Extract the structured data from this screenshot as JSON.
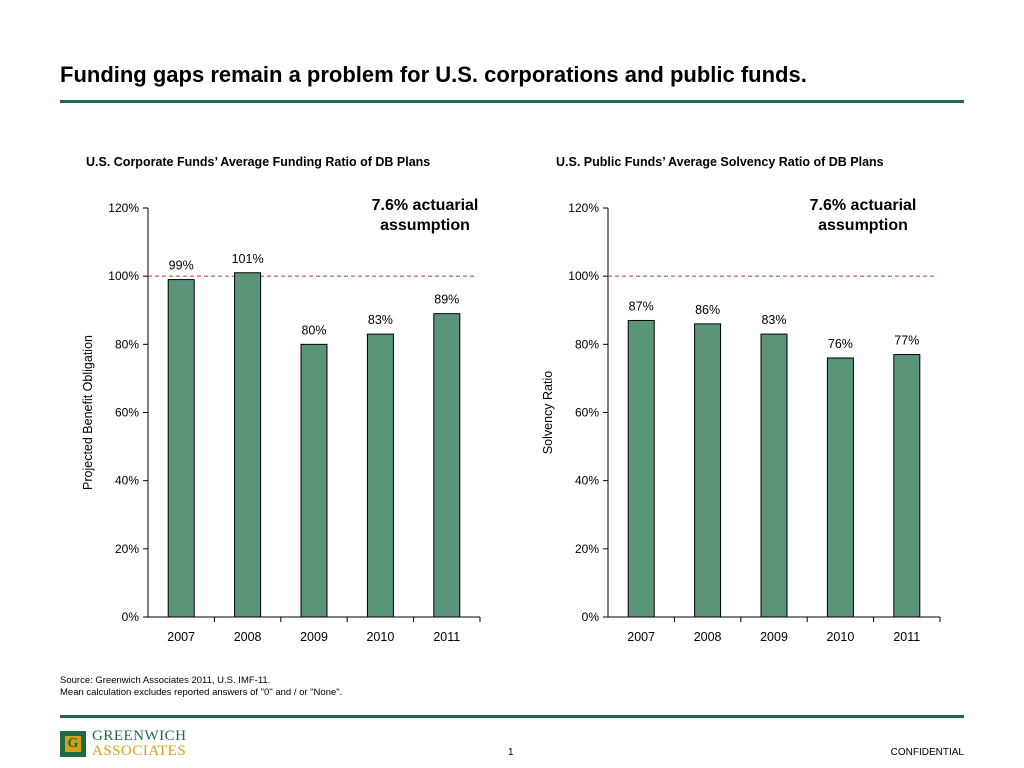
{
  "slide": {
    "title": "Funding gaps remain a problem for U.S. corporations and public funds.",
    "source_line1": "Source: Greenwich Associates 2011, U.S. IMF-11.",
    "source_line2": "Mean calculation excludes reported answers of \"0\" and / or \"None\".",
    "page_number": "1",
    "confidential": "CONFIDENTIAL",
    "logo_line1": "GREENWICH",
    "logo_line2": "ASSOCIATES",
    "logo_letter": "G"
  },
  "colors": {
    "bar_fill": "#5a9479",
    "rule": "#1f6b41",
    "reference_line": "#c0504d",
    "logo_gold": "#d4a017"
  },
  "chart_data": [
    {
      "type": "bar",
      "title": "U.S. Corporate Funds’ Average Funding Ratio of DB Plans",
      "categories": [
        "2007",
        "2008",
        "2009",
        "2010",
        "2011"
      ],
      "values": [
        99,
        101,
        80,
        83,
        89
      ],
      "data_labels": [
        "99%",
        "101%",
        "80%",
        "83%",
        "89%"
      ],
      "ylabel": "Projected Benefit Obligation",
      "xlabel": "",
      "ylim": [
        0,
        120
      ],
      "yticks": [
        0,
        20,
        40,
        60,
        80,
        100,
        120
      ],
      "ytick_labels": [
        "0%",
        "20%",
        "40%",
        "60%",
        "80%",
        "100%",
        "120%"
      ],
      "reference_line": {
        "value": 100,
        "style": "dashed"
      },
      "annotation": [
        "7.6% actuarial",
        "assumption"
      ],
      "grid": false
    },
    {
      "type": "bar",
      "title": "U.S. Public Funds’ Average Solvency Ratio of DB Plans",
      "categories": [
        "2007",
        "2008",
        "2009",
        "2010",
        "2011"
      ],
      "values": [
        87,
        86,
        83,
        76,
        77
      ],
      "data_labels": [
        "87%",
        "86%",
        "83%",
        "76%",
        "77%"
      ],
      "ylabel": "Solvency  Ratio",
      "xlabel": "",
      "ylim": [
        0,
        120
      ],
      "yticks": [
        0,
        20,
        40,
        60,
        80,
        100,
        120
      ],
      "ytick_labels": [
        "0%",
        "20%",
        "40%",
        "60%",
        "80%",
        "100%",
        "120%"
      ],
      "reference_line": {
        "value": 100,
        "style": "dashed"
      },
      "annotation": [
        "7.6% actuarial",
        "assumption"
      ],
      "grid": false
    }
  ]
}
